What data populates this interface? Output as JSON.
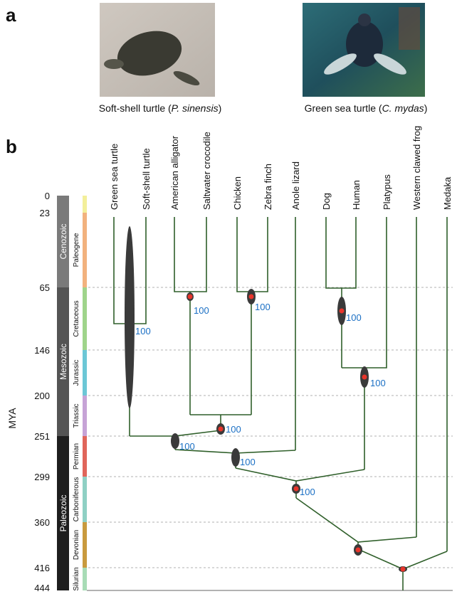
{
  "panel_a": {
    "label": "a",
    "images": [
      {
        "caption": {
          "prefix": "Soft-shell turtle (",
          "species": "P. sinensis",
          "suffix": ")"
        }
      },
      {
        "caption": {
          "prefix": "Green sea  turtle (",
          "species": "C. mydas",
          "suffix": ")"
        }
      }
    ]
  },
  "panel_b": {
    "label": "b",
    "axis_label": "MYA",
    "time_ticks": [
      0,
      23,
      65,
      146,
      200,
      251,
      299,
      360,
      416,
      444
    ],
    "eras": [
      "Cenozoic",
      "Mesozoic",
      "Paleozoic"
    ],
    "periods": [
      "Paleogene",
      "Cretaceous",
      "Jurassic",
      "Triassic",
      "Permian",
      "Carboniferous",
      "Devonian",
      "Silurian"
    ],
    "taxa": [
      "Green sea turtle",
      "Soft-shell turtle",
      "American alligator",
      "Saltwater crocodile",
      "Chicken",
      "Zebra finch",
      "Anole lizard",
      "Dog",
      "Human",
      "Platypus",
      "Western clawed frog",
      "Medaka"
    ],
    "support_labels": [
      100,
      100,
      100,
      100,
      100,
      100,
      100,
      100,
      100
    ]
  }
}
